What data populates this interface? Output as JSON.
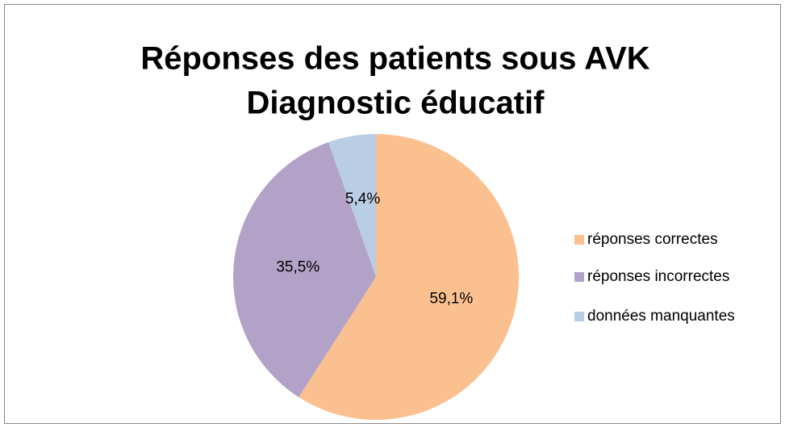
{
  "chart_data": {
    "type": "pie",
    "title": [
      "Réponses des patients sous AVK",
      "Diagnostic éducatif"
    ],
    "categories": [
      "réponses correctes",
      "réponses incorrectes",
      "données manquantes"
    ],
    "values": [
      59.1,
      35.5,
      5.4
    ],
    "value_labels": [
      "59,1%",
      "35,5%",
      "5,4%"
    ],
    "colors": [
      "#fac090",
      "#b3a2c7",
      "#b9cde5"
    ],
    "legend": "right"
  }
}
